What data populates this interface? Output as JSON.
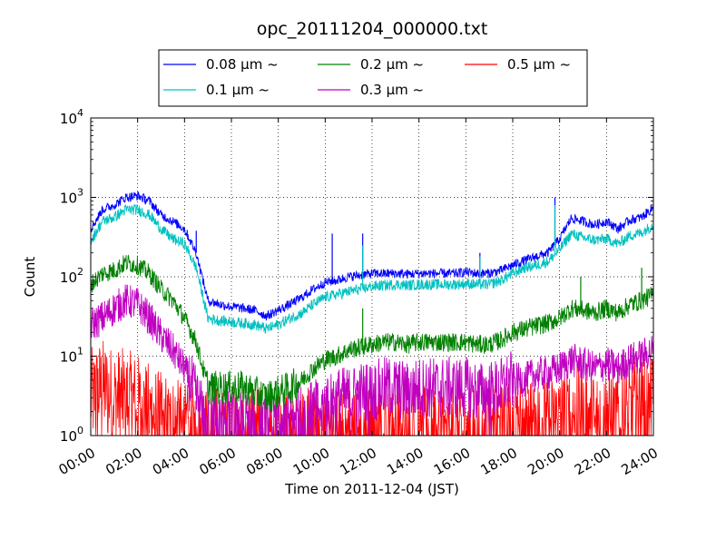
{
  "chart_data": {
    "type": "line",
    "title": "opc_20111204_000000.txt",
    "xlabel": "Time on 2011-12-04 (JST)",
    "ylabel": "Count",
    "xlim": [
      "00:00",
      "24:00"
    ],
    "ylim": [
      1,
      10000
    ],
    "yscale": "log",
    "grid": true,
    "legend_position": "top-center, above plot",
    "x_ticks": [
      "00:00",
      "02:00",
      "04:00",
      "06:00",
      "08:00",
      "10:00",
      "12:00",
      "14:00",
      "16:00",
      "18:00",
      "20:00",
      "22:00",
      "24:00"
    ],
    "y_ticks": [
      {
        "value": 1,
        "base": "10",
        "exp": "0"
      },
      {
        "value": 10,
        "base": "10",
        "exp": "1"
      },
      {
        "value": 100,
        "base": "10",
        "exp": "2"
      },
      {
        "value": 1000,
        "base": "10",
        "exp": "3"
      },
      {
        "value": 10000,
        "base": "10",
        "exp": "4"
      }
    ],
    "x_hours": [
      0,
      0.5,
      1,
      1.5,
      2,
      2.5,
      3,
      3.5,
      4,
      4.5,
      5,
      5.5,
      6,
      6.5,
      7,
      7.5,
      8,
      8.5,
      9,
      9.5,
      10,
      10.5,
      11,
      11.5,
      12,
      12.5,
      13,
      13.5,
      14,
      14.5,
      15,
      15.5,
      16,
      16.5,
      17,
      17.5,
      18,
      18.5,
      19,
      19.5,
      20,
      20.5,
      21,
      21.5,
      22,
      22.5,
      23,
      23.5,
      24
    ],
    "series": [
      {
        "name": "0.08 μm ~",
        "color": "#0000ff",
        "values": [
          400,
          700,
          800,
          1000,
          1050,
          900,
          600,
          500,
          400,
          200,
          50,
          45,
          42,
          40,
          38,
          32,
          38,
          45,
          55,
          70,
          85,
          90,
          100,
          105,
          110,
          110,
          110,
          108,
          110,
          110,
          110,
          110,
          115,
          110,
          110,
          120,
          140,
          160,
          180,
          200,
          300,
          550,
          500,
          450,
          500,
          400,
          520,
          560,
          750
        ]
      },
      {
        "name": "0.1 μm ~",
        "color": "#00c0c0",
        "values": [
          280,
          500,
          560,
          700,
          700,
          600,
          400,
          300,
          260,
          130,
          30,
          28,
          27,
          26,
          25,
          22,
          25,
          30,
          35,
          45,
          55,
          60,
          65,
          70,
          75,
          78,
          80,
          78,
          80,
          80,
          80,
          80,
          82,
          80,
          80,
          90,
          110,
          130,
          140,
          155,
          220,
          350,
          310,
          290,
          300,
          260,
          330,
          360,
          450
        ]
      },
      {
        "name": "0.2 μm ~",
        "color": "#008000",
        "values": [
          80,
          110,
          120,
          150,
          140,
          110,
          70,
          50,
          30,
          15,
          4,
          4,
          4,
          4,
          3.5,
          3,
          3.5,
          4,
          5,
          7,
          9,
          10,
          12,
          13,
          14,
          15,
          15,
          14,
          15,
          15,
          15,
          15,
          15,
          14,
          14,
          16,
          20,
          22,
          24,
          26,
          30,
          40,
          38,
          35,
          40,
          35,
          45,
          50,
          60
        ]
      },
      {
        "name": "0.3 μm ~",
        "color": "#c000c0",
        "values": [
          25,
          30,
          40,
          50,
          45,
          30,
          18,
          12,
          7,
          3,
          1.5,
          1.5,
          1.5,
          1.5,
          1.3,
          1.2,
          1.3,
          1.5,
          1.8,
          2,
          2.5,
          3,
          3,
          3.5,
          3.5,
          4,
          4,
          3.5,
          4,
          4,
          4,
          4,
          4,
          3.5,
          3.5,
          4,
          5,
          5,
          6,
          6,
          7,
          9,
          8,
          7,
          8,
          7,
          9,
          10,
          12
        ]
      },
      {
        "name": "0.5 μm ~",
        "color": "#ff0000",
        "values": [
          3,
          4,
          3,
          3,
          2.5,
          2,
          1.5,
          1.3,
          1.1,
          1,
          1,
          1,
          1,
          1,
          1,
          1,
          1,
          1,
          1,
          1,
          1,
          1,
          1,
          1,
          1,
          1,
          1,
          1,
          1,
          1,
          1,
          1,
          1,
          1,
          1,
          1.1,
          1.2,
          1.2,
          1.3,
          1.3,
          1.5,
          1.8,
          1.7,
          1.6,
          1.8,
          1.7,
          2,
          2.2,
          2.5
        ]
      }
    ],
    "spikes": [
      {
        "series": 0,
        "hour": 4.5,
        "value": 380
      },
      {
        "series": 0,
        "hour": 10.3,
        "value": 350
      },
      {
        "series": 0,
        "hour": 11.6,
        "value": 350
      },
      {
        "series": 1,
        "hour": 11.6,
        "value": 250
      },
      {
        "series": 2,
        "hour": 11.6,
        "value": 40
      },
      {
        "series": 0,
        "hour": 16.6,
        "value": 200
      },
      {
        "series": 1,
        "hour": 16.6,
        "value": 180
      },
      {
        "series": 2,
        "hour": 20.9,
        "value": 100
      },
      {
        "series": 0,
        "hour": 19.8,
        "value": 1000
      },
      {
        "series": 1,
        "hour": 19.8,
        "value": 800
      },
      {
        "series": 2,
        "hour": 23.5,
        "value": 130
      }
    ]
  }
}
